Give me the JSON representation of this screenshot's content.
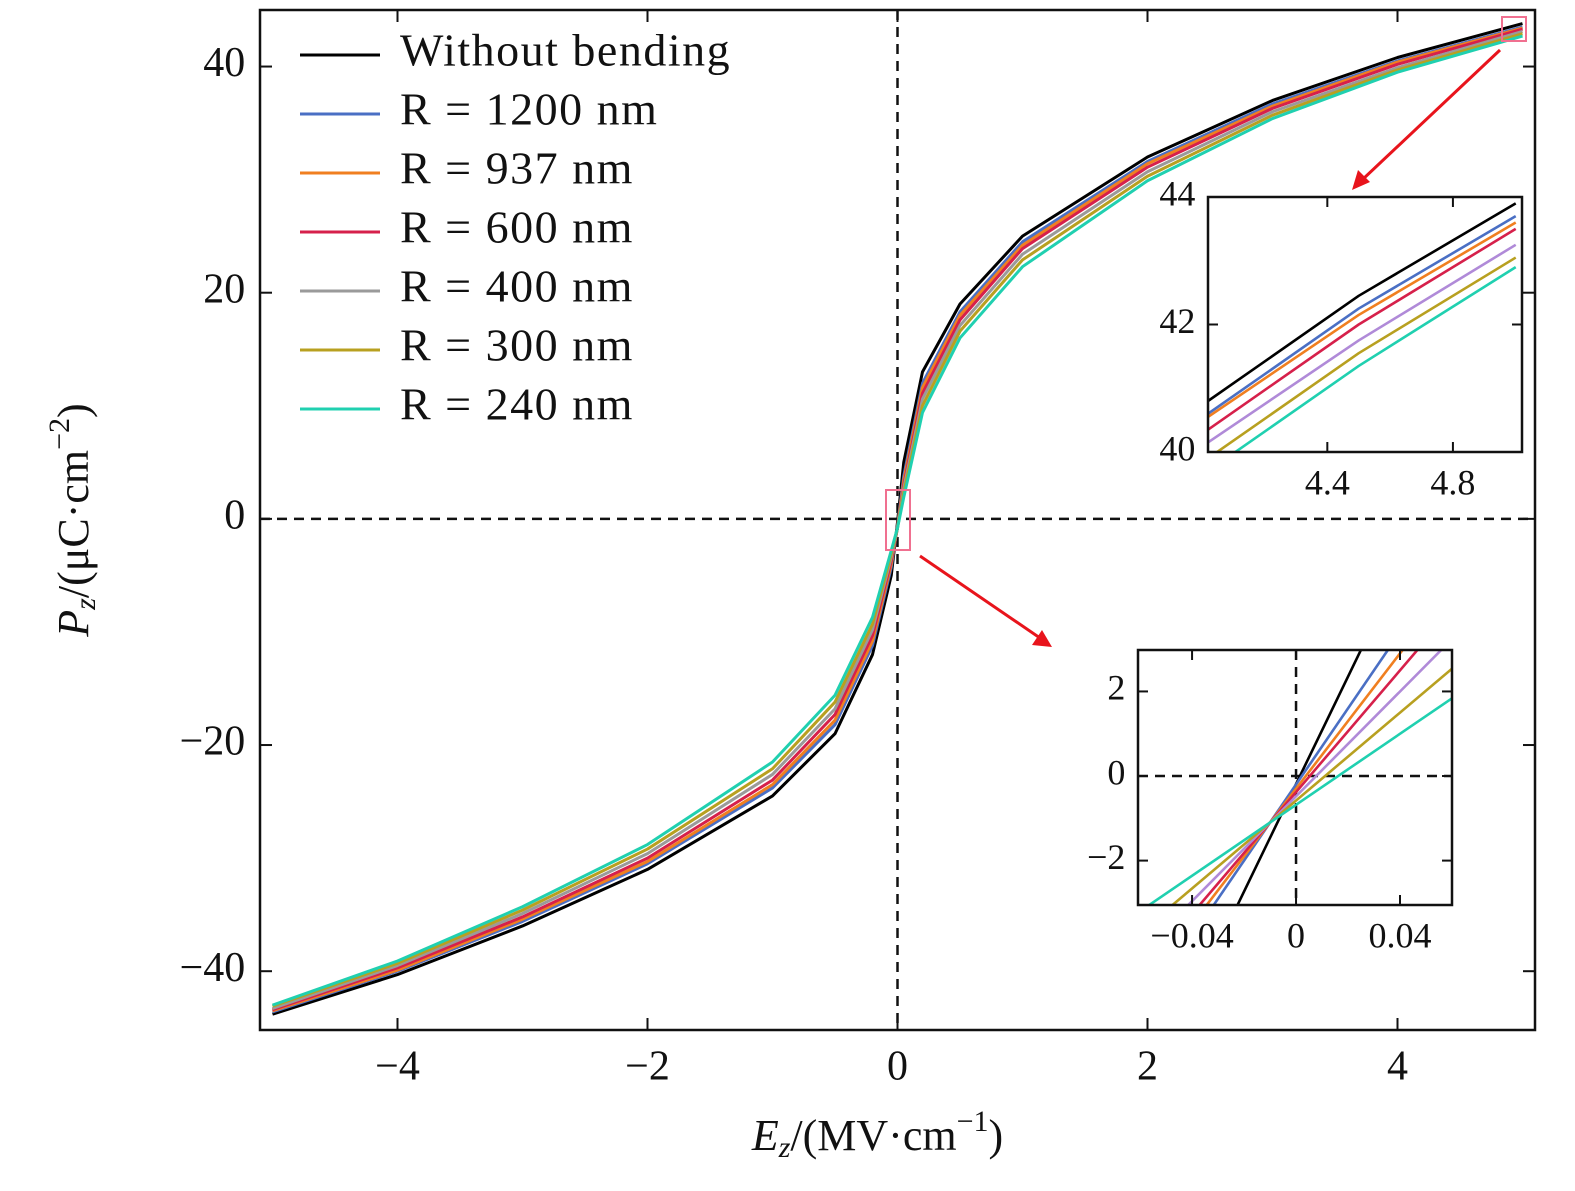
{
  "chart_data": [
    {
      "type": "line",
      "x_label": [
        "E",
        "z",
        "/(MV·cm",
        "−1",
        ")"
      ],
      "y_label": [
        "P",
        "z",
        "/(μC·cm",
        "−2",
        ")"
      ],
      "xlim": [
        -5.1,
        5.1
      ],
      "ylim": [
        -45.2,
        45
      ],
      "xticks": [
        {
          "value": -4,
          "label": "−4"
        },
        {
          "value": -2,
          "label": "−2"
        },
        0,
        2,
        4
      ],
      "yticks": [
        {
          "value": -40,
          "label": "−40"
        },
        {
          "value": -20,
          "label": "−20"
        },
        0,
        20,
        40
      ],
      "x": [
        -5,
        -4,
        -3,
        -2,
        -1,
        -0.5,
        -0.2,
        -0.05,
        0,
        0.05,
        0.2,
        0.5,
        1,
        2,
        3,
        4,
        5
      ],
      "legend": "upper left",
      "series": [
        {
          "name": "Without bending",
          "color": "#000000",
          "values": [
            -43.8,
            -40.3,
            -36,
            -31,
            -24.5,
            -19,
            -12,
            -5,
            -0.3,
            5,
            13,
            19,
            25,
            32,
            37,
            40.8,
            43.8
          ]
        },
        {
          "name": "R = 1200 nm",
          "color": "#4a6fc4",
          "values": [
            -43.6,
            -40,
            -35.6,
            -30.5,
            -23.8,
            -18.2,
            -11.2,
            -4.3,
            -0.6,
            3.8,
            12,
            18.3,
            24.5,
            31.6,
            36.7,
            40.5,
            43.5
          ]
        },
        {
          "name": "R = 937 nm",
          "color": "#f07f20",
          "values": [
            -43.5,
            -39.9,
            -35.4,
            -30.3,
            -23.5,
            -17.8,
            -10.8,
            -4,
            -0.7,
            3.4,
            11.6,
            18,
            24.2,
            31.4,
            36.5,
            40.4,
            43.4
          ]
        },
        {
          "name": "R = 600 nm",
          "color": "#d6204b",
          "values": [
            -43.4,
            -39.7,
            -35.2,
            -30,
            -23.1,
            -17.3,
            -10.3,
            -3.7,
            -0.8,
            3,
            11.1,
            17.6,
            23.9,
            31.1,
            36.3,
            40.2,
            43.3
          ]
        },
        {
          "name": "R = 400 nm",
          "color": "#9a9a9a",
          "values": [
            -43.3,
            -39.5,
            -34.9,
            -29.6,
            -22.6,
            -16.8,
            -9.8,
            -3.4,
            -0.8,
            2.7,
            10.6,
            17.1,
            23.4,
            30.7,
            36,
            39.9,
            43.1
          ]
        },
        {
          "name": "R = 300 nm",
          "color": "#b8a020",
          "values": [
            -43.1,
            -39.3,
            -34.6,
            -29.2,
            -22.1,
            -16.2,
            -9.3,
            -3.1,
            -0.8,
            2.3,
            10,
            16.6,
            22.9,
            30.3,
            35.7,
            39.7,
            42.9
          ]
        },
        {
          "name": "R = 240 nm",
          "color": "#20d0b0",
          "values": [
            -43,
            -39.1,
            -34.3,
            -28.8,
            -21.5,
            -15.6,
            -8.7,
            -2.8,
            -0.8,
            1.9,
            9.4,
            16,
            22.3,
            29.9,
            35.4,
            39.5,
            42.7
          ]
        }
      ]
    },
    {
      "type": "line",
      "xlim": [
        4.02,
        5.02
      ],
      "ylim": [
        40,
        44
      ],
      "xticks": [
        4.4,
        4.8
      ],
      "yticks": [
        40,
        42,
        44
      ],
      "x": [
        4.02,
        4.5,
        5.0
      ],
      "series": [
        {
          "color": "#000000",
          "values": [
            40.8,
            42.45,
            43.9
          ]
        },
        {
          "color": "#4a6fc4",
          "values": [
            40.6,
            42.25,
            43.7
          ]
        },
        {
          "color": "#f07f20",
          "values": [
            40.55,
            42.15,
            43.6
          ]
        },
        {
          "color": "#d6204b",
          "values": [
            40.35,
            42,
            43.5
          ]
        },
        {
          "color": "#b08ad8",
          "values": [
            40.15,
            41.75,
            43.25
          ]
        },
        {
          "color": "#b8a020",
          "values": [
            39.9,
            41.55,
            43.05
          ]
        },
        {
          "color": "#20d0b0",
          "values": [
            39.7,
            41.35,
            42.9
          ]
        }
      ]
    },
    {
      "type": "line",
      "xlim": [
        -0.0608,
        0.06
      ],
      "ylim": [
        -3.05,
        2.98
      ],
      "xticks": [
        {
          "value": -0.04,
          "label": "−0.04"
        },
        0,
        0.04
      ],
      "yticks": [
        {
          "value": -2,
          "label": "−2"
        },
        0,
        2
      ],
      "x": [
        -0.061,
        0.061
      ],
      "series": [
        {
          "color": "#000000",
          "values": [
            -7.94,
            7.56
          ]
        },
        {
          "color": "#4a6fc4",
          "values": [
            -5.69,
            5.29
          ]
        },
        {
          "color": "#f07f20",
          "values": [
            -5.18,
            4.58
          ]
        },
        {
          "color": "#d6204b",
          "values": [
            -4.77,
            4.01
          ]
        },
        {
          "color": "#b08ad8",
          "values": [
            -4.26,
            3.3
          ]
        },
        {
          "color": "#b8a020",
          "values": [
            -3.75,
            2.59
          ]
        },
        {
          "color": "#20d0b0",
          "values": [
            -3.24,
            1.88
          ]
        }
      ]
    }
  ]
}
